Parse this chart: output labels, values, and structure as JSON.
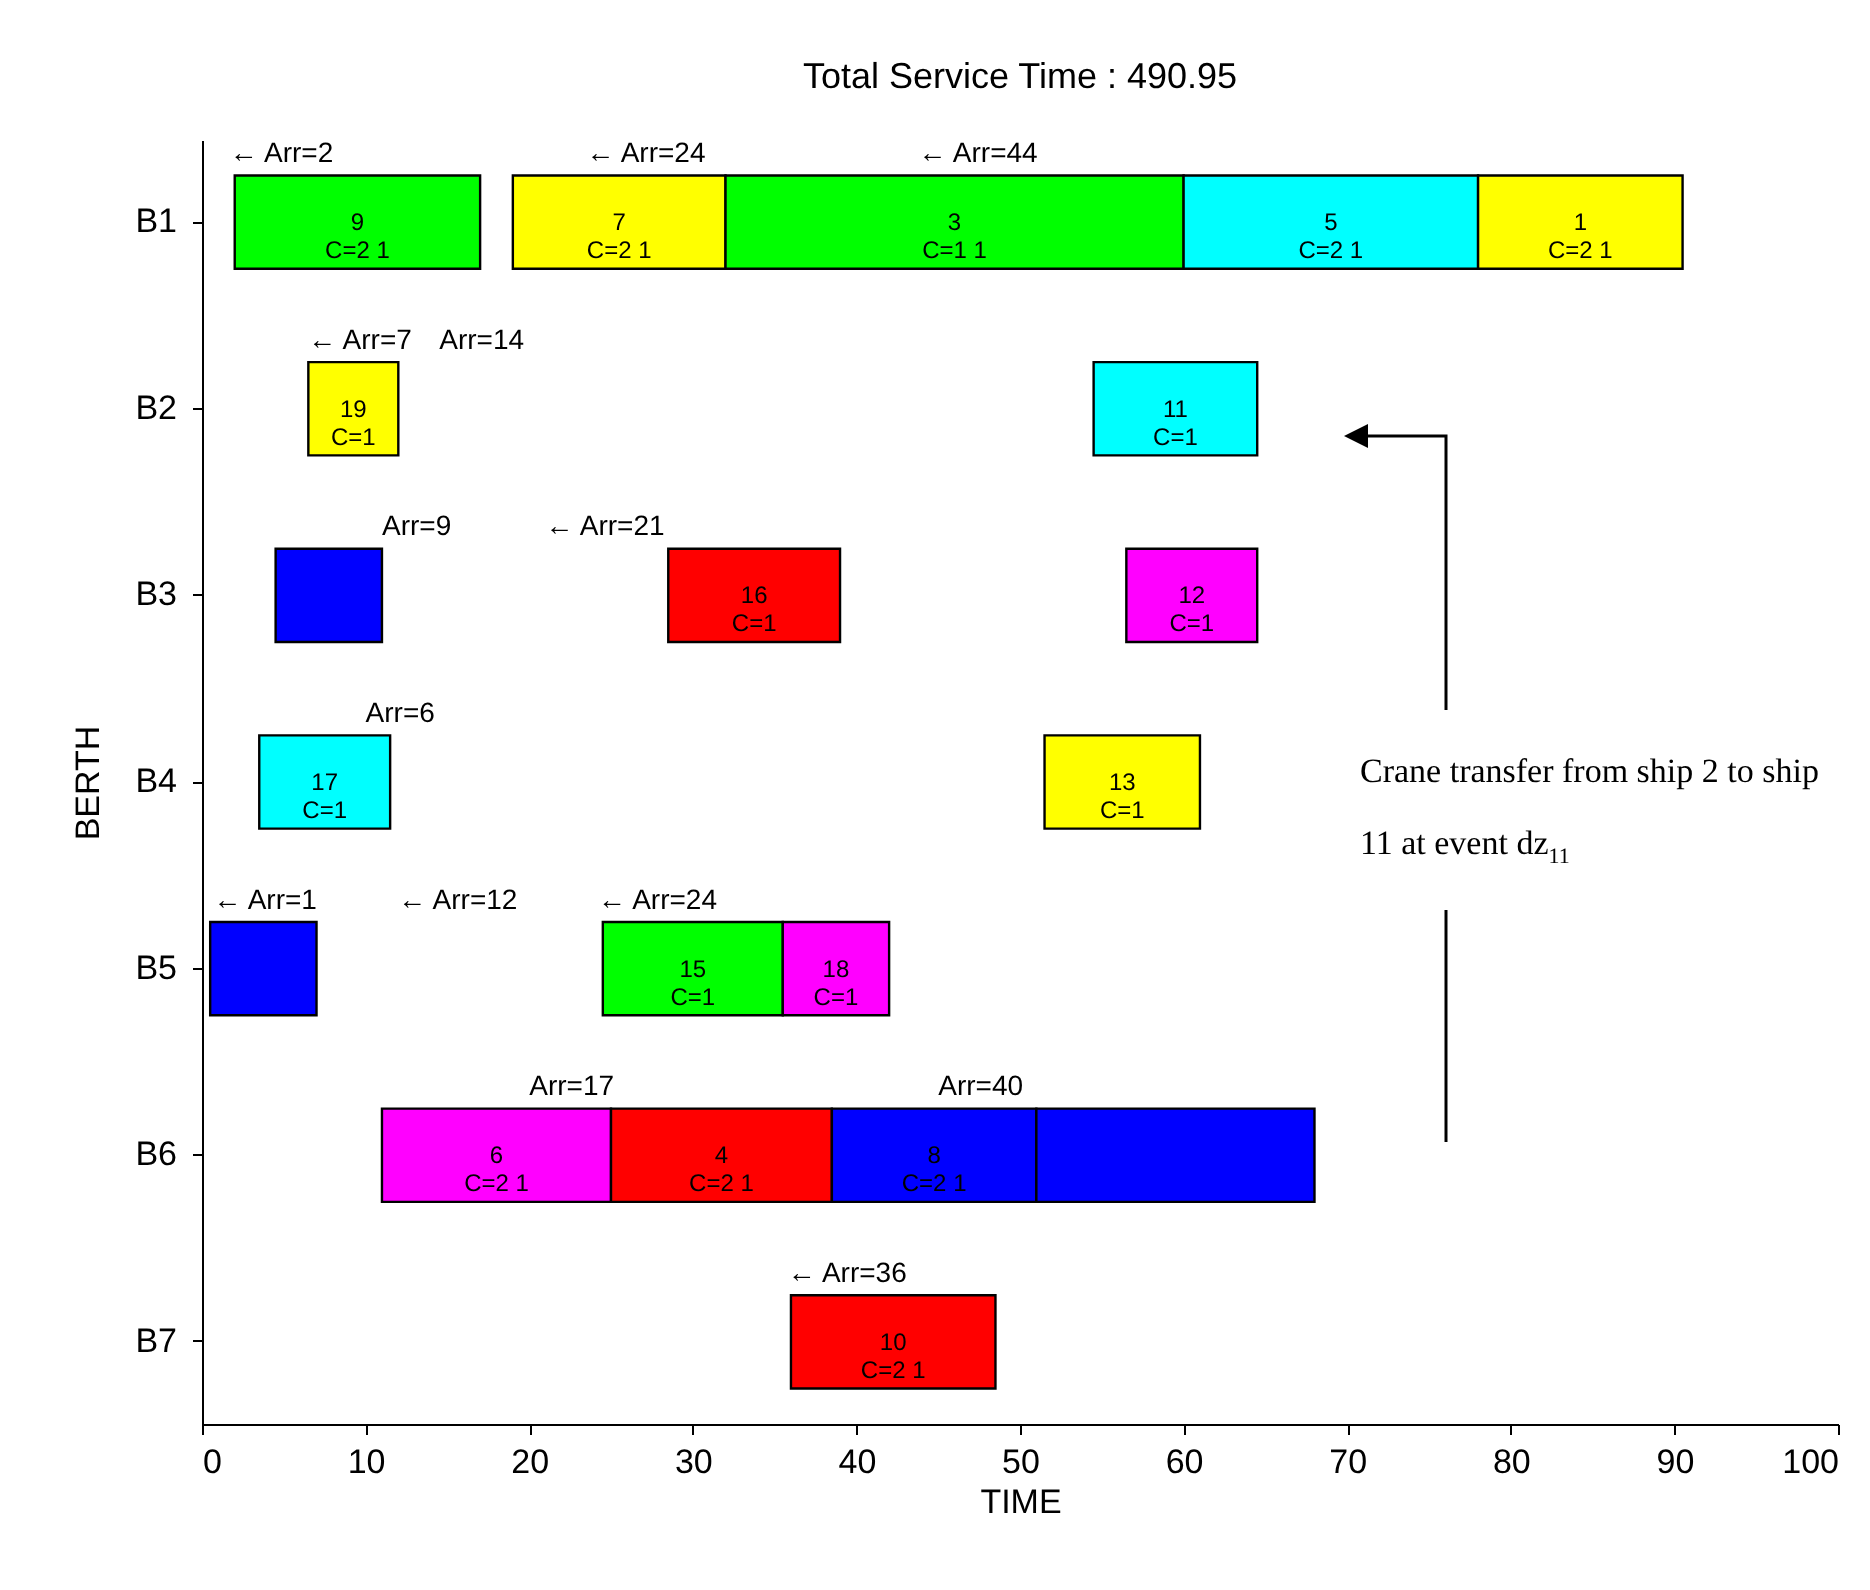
{
  "chart_data": {
    "type": "bar",
    "orientation": "horizontal",
    "title": "Total Service Time :  490.95",
    "xlabel": "TIME",
    "ylabel": "BERTH",
    "categories": [
      "B1",
      "B2",
      "B3",
      "B4",
      "B5",
      "B6",
      "B7"
    ],
    "xlim": [
      0,
      100
    ],
    "xticks": [
      0,
      10,
      20,
      30,
      40,
      50,
      60,
      70,
      80,
      90,
      100
    ],
    "series": [
      {
        "base": [
          2,
          6.5,
          4.5,
          3.5,
          0.5,
          11,
          36
        ],
        "values": [
          15,
          5.5,
          6.5,
          8,
          6.5,
          14,
          12.5
        ],
        "colors": [
          "#00ff00",
          "#ffff00",
          "#0000ff",
          "#00ffff",
          "#0000ff",
          "#ff00ff",
          "#ff0000"
        ]
      },
      {
        "base": [
          19,
          54.5,
          28.5,
          51.5,
          24.5,
          25,
          null
        ],
        "values": [
          13,
          10,
          10.5,
          9.5,
          11,
          13.5,
          null
        ],
        "colors": [
          "#ffff00",
          "#00ffff",
          "#ff0000",
          "#ffff00",
          "#00ff00",
          "#ff0000",
          null
        ]
      },
      {
        "base": [
          32,
          null,
          56.5,
          null,
          35.5,
          38.5,
          null
        ],
        "values": [
          28,
          null,
          8,
          null,
          6.5,
          12.5,
          null
        ],
        "colors": [
          "#00ff00",
          null,
          "#ff00ff",
          null,
          "#ff00ff",
          "#0000ff",
          null
        ]
      },
      {
        "base": [
          60,
          null,
          null,
          null,
          null,
          51,
          null
        ],
        "values": [
          18,
          null,
          null,
          null,
          null,
          17,
          null
        ],
        "colors": [
          "#00ffff",
          null,
          null,
          null,
          null,
          "#0000ff",
          null
        ]
      },
      {
        "base": [
          78,
          null,
          null,
          null,
          null,
          null,
          null
        ],
        "values": [
          12.5,
          null,
          null,
          null,
          null,
          null,
          null
        ],
        "colors": [
          "#ffff00",
          null,
          null,
          null,
          null,
          null,
          null
        ]
      }
    ],
    "annotations": [
      "9\nC=2  1",
      "7\nC=2  1",
      "3\nC=1  1",
      "5\nC=2  1",
      "1\nC=2  1",
      "19\nC=1",
      "11\nC=1",
      "16\nC=1",
      "12\nC=1",
      "17\nC=1",
      "13\nC=1",
      "15\nC=1",
      "18\nC=1",
      "6\nC=2  1",
      "4\nC=2  1",
      "8\nC=2  1",
      "10\nC=2  1",
      "← Arr=2",
      "← Arr=24",
      "← Arr=44",
      "← Arr=7",
      "Arr=14",
      "Arr=9",
      "← Arr=21",
      "Arr=6",
      "← Arr=1",
      "← Arr=12",
      "← Arr=24",
      "Arr=17",
      "Arr=40",
      "← Arr=36",
      "Crane transfer  from ship 2 to ship 11 at event dz$_{11}$"
    ]
  }
}
